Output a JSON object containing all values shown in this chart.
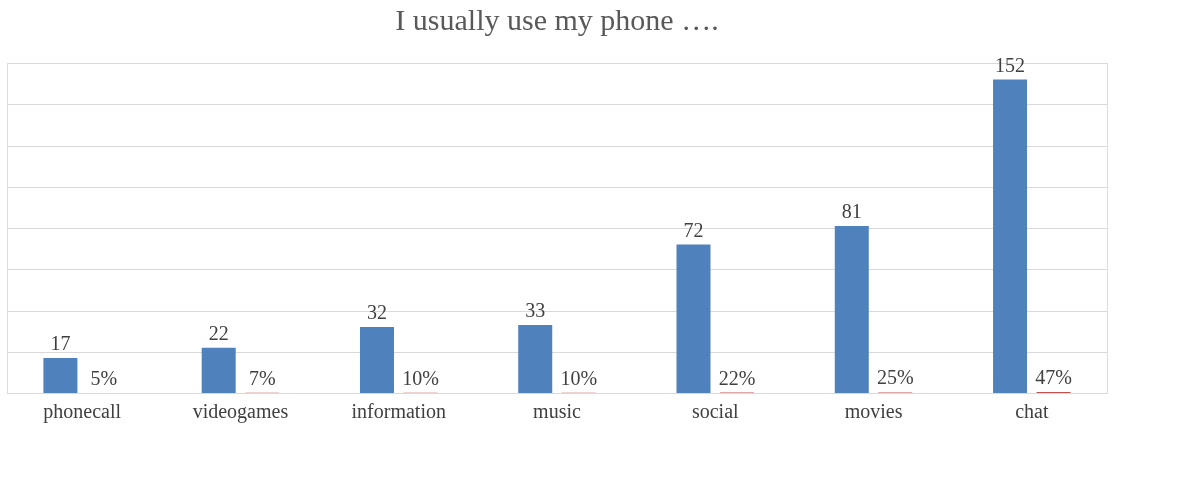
{
  "chart_data": {
    "type": "bar",
    "title": "I usually use my phone ….",
    "categories": [
      "phonecall",
      "videogames",
      "information",
      "music",
      "social",
      "movies",
      "chat"
    ],
    "series": [
      {
        "color": "#4f81bd",
        "values": [
          17,
          22,
          32,
          33,
          72,
          81,
          152
        ],
        "value_labels": [
          "17",
          "22",
          "32",
          "33",
          "72",
          "81",
          "152"
        ]
      },
      {
        "color": "#c0504d",
        "values": [
          0.05,
          0.07,
          0.1,
          0.1,
          0.22,
          0.25,
          0.47
        ],
        "value_labels": [
          "5%",
          "7%",
          "10%",
          "10%",
          "22%",
          "25%",
          "47%"
        ]
      }
    ],
    "ylim": [
      0,
      160
    ],
    "yticks": [
      {
        "value": 0,
        "label": null
      },
      {
        "value": 20,
        "label": null
      },
      {
        "value": 40,
        "label": null
      },
      {
        "value": 60,
        "label": null
      },
      {
        "value": 80,
        "label": null
      },
      {
        "value": 100,
        "label": null
      },
      {
        "value": 120,
        "label": null
      },
      {
        "value": 140,
        "label": null
      },
      {
        "value": 160,
        "label": null
      }
    ],
    "grid": "y"
  }
}
